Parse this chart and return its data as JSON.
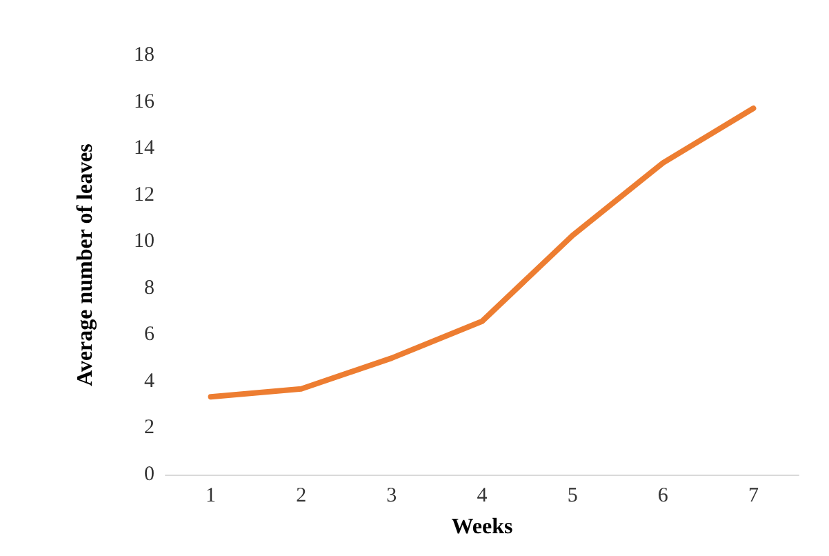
{
  "chart_data": {
    "type": "line",
    "xlabel": "Weeks",
    "ylabel": "Average number of leaves",
    "categories": [
      "1",
      "2",
      "3",
      "4",
      "5",
      "6",
      "7"
    ],
    "series": [
      {
        "color": "#ed7d31",
        "values": [
          3.34,
          3.68,
          5.0,
          6.58,
          10.26,
          13.38,
          15.72
        ]
      }
    ],
    "ylim": [
      0,
      18
    ],
    "yticks": [
      0,
      2,
      4,
      6,
      8,
      10,
      12,
      14,
      16,
      18
    ],
    "grid": false,
    "marker": "none",
    "line_style": "solid"
  }
}
